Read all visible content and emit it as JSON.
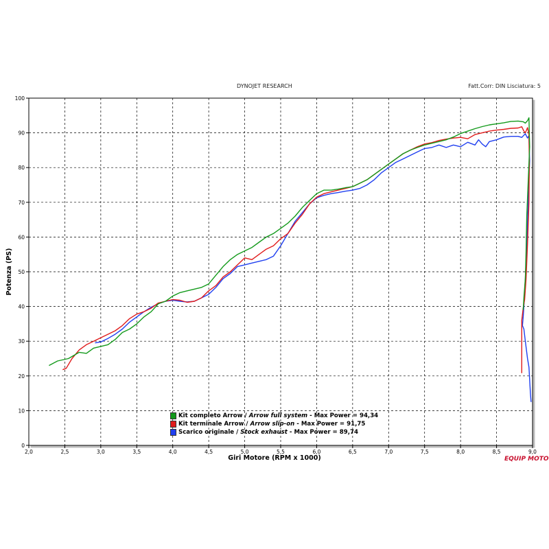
{
  "header": {
    "title": "DYNOJET RESEARCH",
    "correction": "Fatt.Corr: DIN  Lisciatura: 5"
  },
  "watermark": "EQUIP MOTO",
  "chart_data": {
    "type": "line",
    "xlabel": "Giri Motore (RPM x 1000)",
    "ylabel": "Potenza (PS)",
    "xlim": [
      2.0,
      9.0
    ],
    "ylim": [
      0,
      100
    ],
    "xticks": [
      "2,0",
      "2,5",
      "3,0",
      "3,5",
      "4,0",
      "4,5",
      "5,0",
      "5,5",
      "6,0",
      "6,5",
      "7,0",
      "7,5",
      "8,0",
      "8,5",
      "9,0"
    ],
    "yticks": [
      "0",
      "10",
      "20",
      "30",
      "40",
      "50",
      "60",
      "70",
      "80",
      "90",
      "100"
    ],
    "grid": true,
    "legend_position": "bottom-center",
    "series": [
      {
        "name": "Kit completo Arrow",
        "name_italic": "Arrow full system",
        "max_label": "Max Power = 94,34",
        "color": "#139a1b",
        "points": [
          [
            2.28,
            23
          ],
          [
            2.4,
            24.3
          ],
          [
            2.55,
            25
          ],
          [
            2.7,
            26.8
          ],
          [
            2.8,
            26.5
          ],
          [
            2.9,
            28
          ],
          [
            3.0,
            28.5
          ],
          [
            3.1,
            29
          ],
          [
            3.2,
            30.5
          ],
          [
            3.3,
            32.5
          ],
          [
            3.4,
            33.5
          ],
          [
            3.5,
            35
          ],
          [
            3.6,
            37
          ],
          [
            3.7,
            38.5
          ],
          [
            3.8,
            40.8
          ],
          [
            3.9,
            41.5
          ],
          [
            4.0,
            43
          ],
          [
            4.1,
            44
          ],
          [
            4.2,
            44.5
          ],
          [
            4.3,
            45
          ],
          [
            4.4,
            45.5
          ],
          [
            4.5,
            46.5
          ],
          [
            4.6,
            49
          ],
          [
            4.7,
            51.5
          ],
          [
            4.8,
            53.5
          ],
          [
            4.9,
            55
          ],
          [
            5.0,
            56
          ],
          [
            5.1,
            57
          ],
          [
            5.2,
            58.5
          ],
          [
            5.3,
            60
          ],
          [
            5.4,
            61
          ],
          [
            5.5,
            62.5
          ],
          [
            5.6,
            64
          ],
          [
            5.7,
            66
          ],
          [
            5.8,
            68.5
          ],
          [
            5.9,
            70.5
          ],
          [
            6.0,
            72.5
          ],
          [
            6.1,
            73.5
          ],
          [
            6.2,
            73.5
          ],
          [
            6.3,
            73.8
          ],
          [
            6.4,
            74.2
          ],
          [
            6.5,
            74.5
          ],
          [
            6.6,
            75.5
          ],
          [
            6.7,
            76.5
          ],
          [
            6.8,
            78
          ],
          [
            6.9,
            79.5
          ],
          [
            7.0,
            81
          ],
          [
            7.1,
            82.5
          ],
          [
            7.2,
            84
          ],
          [
            7.3,
            85
          ],
          [
            7.4,
            85.8
          ],
          [
            7.5,
            86.5
          ],
          [
            7.6,
            87
          ],
          [
            7.7,
            87.5
          ],
          [
            7.8,
            88
          ],
          [
            7.9,
            88.8
          ],
          [
            8.0,
            89.8
          ],
          [
            8.1,
            90.5
          ],
          [
            8.2,
            91.2
          ],
          [
            8.3,
            91.8
          ],
          [
            8.4,
            92.3
          ],
          [
            8.5,
            92.6
          ],
          [
            8.6,
            92.9
          ],
          [
            8.7,
            93.3
          ],
          [
            8.8,
            93.4
          ],
          [
            8.87,
            93.2
          ],
          [
            8.9,
            92.8
          ],
          [
            8.93,
            93.5
          ],
          [
            8.95,
            94.34
          ],
          [
            8.96,
            86
          ],
          [
            8.94,
            76
          ],
          [
            8.92,
            66
          ],
          [
            8.91,
            56
          ],
          [
            8.9,
            48
          ],
          [
            8.88,
            42.5
          ],
          [
            8.87,
            39
          ]
        ]
      },
      {
        "name": "Kit terminale Arrow",
        "name_italic": "Arrow slip-on",
        "max_label": "Max Power = 91,75",
        "color": "#e01b1b",
        "points": [
          [
            2.47,
            21.8
          ],
          [
            2.52,
            22.2
          ],
          [
            2.6,
            25
          ],
          [
            2.7,
            27.5
          ],
          [
            2.8,
            29
          ],
          [
            2.9,
            30
          ],
          [
            3.0,
            31
          ],
          [
            3.1,
            32
          ],
          [
            3.2,
            33
          ],
          [
            3.3,
            34.5
          ],
          [
            3.4,
            36.5
          ],
          [
            3.5,
            37.8
          ],
          [
            3.6,
            38.5
          ],
          [
            3.7,
            39.5
          ],
          [
            3.8,
            41
          ],
          [
            3.9,
            41.5
          ],
          [
            4.0,
            42
          ],
          [
            4.1,
            41.8
          ],
          [
            4.2,
            41.2
          ],
          [
            4.3,
            41.5
          ],
          [
            4.4,
            42.5
          ],
          [
            4.5,
            44.5
          ],
          [
            4.6,
            46
          ],
          [
            4.7,
            48.5
          ],
          [
            4.8,
            50
          ],
          [
            4.9,
            52
          ],
          [
            5.0,
            54
          ],
          [
            5.1,
            53.5
          ],
          [
            5.2,
            55
          ],
          [
            5.3,
            56.5
          ],
          [
            5.4,
            57.5
          ],
          [
            5.5,
            59.5
          ],
          [
            5.6,
            61
          ],
          [
            5.7,
            64
          ],
          [
            5.8,
            66.5
          ],
          [
            5.9,
            69.5
          ],
          [
            6.0,
            71.5
          ],
          [
            6.1,
            72.5
          ],
          [
            6.2,
            73
          ],
          [
            6.3,
            73.5
          ],
          [
            6.4,
            74
          ],
          [
            6.5,
            74.5
          ],
          [
            6.6,
            75.5
          ],
          [
            6.7,
            76.5
          ],
          [
            6.8,
            78
          ],
          [
            6.9,
            79.5
          ],
          [
            7.0,
            81
          ],
          [
            7.1,
            82.5
          ],
          [
            7.2,
            84
          ],
          [
            7.3,
            85
          ],
          [
            7.4,
            86
          ],
          [
            7.5,
            86.8
          ],
          [
            7.6,
            87.2
          ],
          [
            7.7,
            87.8
          ],
          [
            7.8,
            88.2
          ],
          [
            7.9,
            88.5
          ],
          [
            8.0,
            88.7
          ],
          [
            8.1,
            88.3
          ],
          [
            8.2,
            89.5
          ],
          [
            8.3,
            90
          ],
          [
            8.4,
            90.5
          ],
          [
            8.5,
            90.8
          ],
          [
            8.6,
            91
          ],
          [
            8.7,
            91.3
          ],
          [
            8.8,
            91.4
          ],
          [
            8.85,
            91.75
          ],
          [
            8.88,
            90.5
          ],
          [
            8.9,
            90
          ],
          [
            8.93,
            91.5
          ],
          [
            8.95,
            89.5
          ],
          [
            8.955,
            82
          ],
          [
            8.95,
            70
          ],
          [
            8.93,
            58
          ],
          [
            8.91,
            48
          ],
          [
            8.89,
            42
          ],
          [
            8.87,
            39.5
          ],
          [
            8.85,
            36
          ],
          [
            8.85,
            20.8
          ]
        ]
      },
      {
        "name": "Scarico originale",
        "name_italic": "Stock exhaust",
        "max_label": "Max Power = 89,74",
        "color": "#1f3ff0",
        "points": [
          [
            2.92,
            29.5
          ],
          [
            3.0,
            29.8
          ],
          [
            3.1,
            30.8
          ],
          [
            3.2,
            32
          ],
          [
            3.3,
            33.5
          ],
          [
            3.4,
            35.5
          ],
          [
            3.5,
            37
          ],
          [
            3.6,
            38.5
          ],
          [
            3.7,
            39.8
          ],
          [
            3.8,
            40.8
          ],
          [
            3.9,
            41.5
          ],
          [
            4.0,
            41.8
          ],
          [
            4.1,
            41.5
          ],
          [
            4.2,
            41.3
          ],
          [
            4.3,
            41.5
          ],
          [
            4.4,
            42.5
          ],
          [
            4.5,
            43.5
          ],
          [
            4.6,
            45.5
          ],
          [
            4.7,
            48
          ],
          [
            4.8,
            49.5
          ],
          [
            4.9,
            51.5
          ],
          [
            5.0,
            52
          ],
          [
            5.1,
            52.5
          ],
          [
            5.2,
            53
          ],
          [
            5.3,
            53.5
          ],
          [
            5.4,
            54.5
          ],
          [
            5.5,
            57.5
          ],
          [
            5.6,
            61
          ],
          [
            5.7,
            64.5
          ],
          [
            5.8,
            67
          ],
          [
            5.9,
            69.5
          ],
          [
            6.0,
            71.3
          ],
          [
            6.1,
            72
          ],
          [
            6.2,
            72.5
          ],
          [
            6.3,
            72.8
          ],
          [
            6.4,
            73.2
          ],
          [
            6.5,
            73.5
          ],
          [
            6.6,
            74
          ],
          [
            6.7,
            75
          ],
          [
            6.8,
            76.5
          ],
          [
            6.9,
            78.5
          ],
          [
            7.0,
            80
          ],
          [
            7.1,
            81.5
          ],
          [
            7.2,
            82.5
          ],
          [
            7.3,
            83.5
          ],
          [
            7.4,
            84.5
          ],
          [
            7.5,
            85.5
          ],
          [
            7.6,
            85.8
          ],
          [
            7.7,
            86.5
          ],
          [
            7.8,
            85.8
          ],
          [
            7.9,
            86.5
          ],
          [
            8.0,
            86
          ],
          [
            8.1,
            87.3
          ],
          [
            8.2,
            86.5
          ],
          [
            8.25,
            88
          ],
          [
            8.3,
            86.8
          ],
          [
            8.35,
            86
          ],
          [
            8.4,
            87.5
          ],
          [
            8.5,
            88
          ],
          [
            8.6,
            88.8
          ],
          [
            8.7,
            89
          ],
          [
            8.8,
            89
          ],
          [
            8.85,
            88.7
          ],
          [
            8.9,
            89.74
          ],
          [
            8.93,
            88.5
          ],
          [
            8.95,
            89.2
          ],
          [
            8.96,
            82
          ],
          [
            8.94,
            70
          ],
          [
            8.92,
            58
          ],
          [
            8.9,
            48
          ],
          [
            8.88,
            40
          ],
          [
            8.87,
            37
          ],
          [
            8.86,
            34.5
          ],
          [
            8.88,
            33.5
          ],
          [
            8.9,
            30
          ],
          [
            8.93,
            25
          ],
          [
            8.95,
            22.5
          ],
          [
            8.97,
            15
          ],
          [
            8.98,
            12.5
          ]
        ]
      }
    ]
  }
}
